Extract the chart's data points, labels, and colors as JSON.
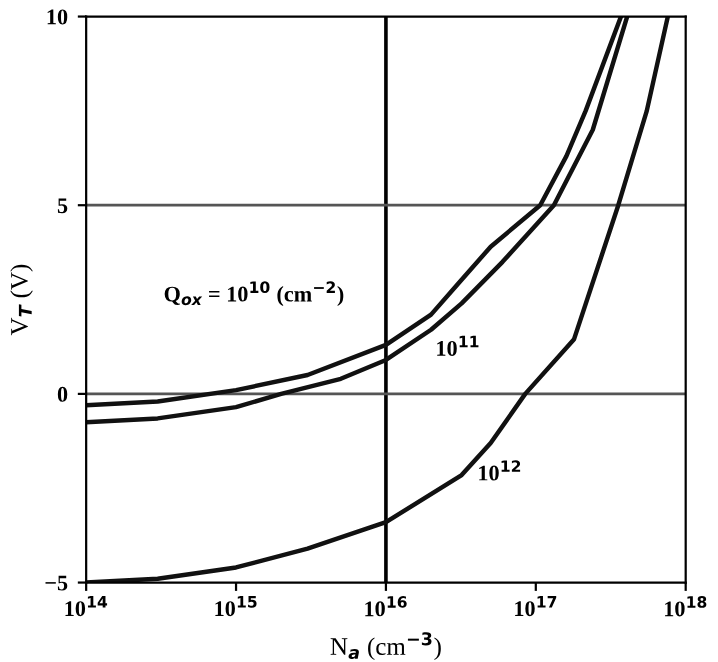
{
  "chart_data": {
    "type": "line",
    "xlabel": "N$_{a}$ (cm$^{−3}$)",
    "ylabel": "V$_{T}$ (V)",
    "log": "x",
    "xlim": [
      100000000000000.0,
      1e+18
    ],
    "ylim": [
      -5,
      10
    ],
    "xticks": [
      {
        "value": 100000000000000.0,
        "label": "10$^{14}$"
      },
      {
        "value": 1000000000000000.0,
        "label": "10$^{15}$"
      },
      {
        "value": 1e+16,
        "label": "10$^{16}$"
      },
      {
        "value": 1e+17,
        "label": "10$^{17}$"
      },
      {
        "value": 1e+18,
        "label": "10$^{18}$"
      }
    ],
    "yticks": [
      {
        "value": -5,
        "label": "−5"
      },
      0,
      5,
      10
    ],
    "grid": false,
    "marker": "none",
    "line_style": "solid",
    "ref_lines": [
      {
        "axis": "x",
        "value": 1e+16,
        "color": "#000000"
      },
      {
        "axis": "y",
        "value": 0,
        "color": "#555555"
      },
      {
        "axis": "y",
        "value": 5,
        "color": "#555555"
      }
    ],
    "annotations": [
      "Q$_{ox}$ = 10$^{10}$ (cm$^{−2}$)",
      "10$^{11}$",
      "10$^{12}$"
    ],
    "series": [
      {
        "color": "#111111",
        "x": [
          100000000000000.0,
          300000000000000.0,
          1000000000000000.0,
          3000000000000000.0,
          1e+16,
          2e+16,
          3e+16,
          5e+16,
          1.07e+17,
          1.6e+17,
          2.15e+17,
          3.7e+17
        ],
        "values": [
          -0.3,
          -0.2,
          0.1,
          0.5,
          1.3,
          2.1,
          2.9,
          3.9,
          5.0,
          6.3,
          7.5,
          10
        ]
      },
      {
        "color": "#111111",
        "x": [
          100000000000000.0,
          300000000000000.0,
          1000000000000000.0,
          2000000000000000.0,
          5000000000000000.0,
          1e+16,
          2e+16,
          3.2e+16,
          6e+16,
          1.32e+17,
          2.4e+17,
          4.07e+17
        ],
        "values": [
          -0.75,
          -0.65,
          -0.35,
          0,
          0.4,
          0.9,
          1.7,
          2.4,
          3.5,
          5.0,
          7.0,
          10
        ]
      },
      {
        "color": "#111111",
        "x": [
          100000000000000.0,
          300000000000000.0,
          1000000000000000.0,
          3000000000000000.0,
          1e+16,
          3.2e+16,
          5e+16,
          8.5e+16,
          1.8e+17,
          3.55e+17,
          5.5e+17,
          7.6e+17
        ],
        "values": [
          -5,
          -4.9,
          -4.6,
          -4.1,
          -3.4,
          -2.15,
          -1.3,
          0,
          1.45,
          5.0,
          7.5,
          10
        ]
      }
    ]
  }
}
